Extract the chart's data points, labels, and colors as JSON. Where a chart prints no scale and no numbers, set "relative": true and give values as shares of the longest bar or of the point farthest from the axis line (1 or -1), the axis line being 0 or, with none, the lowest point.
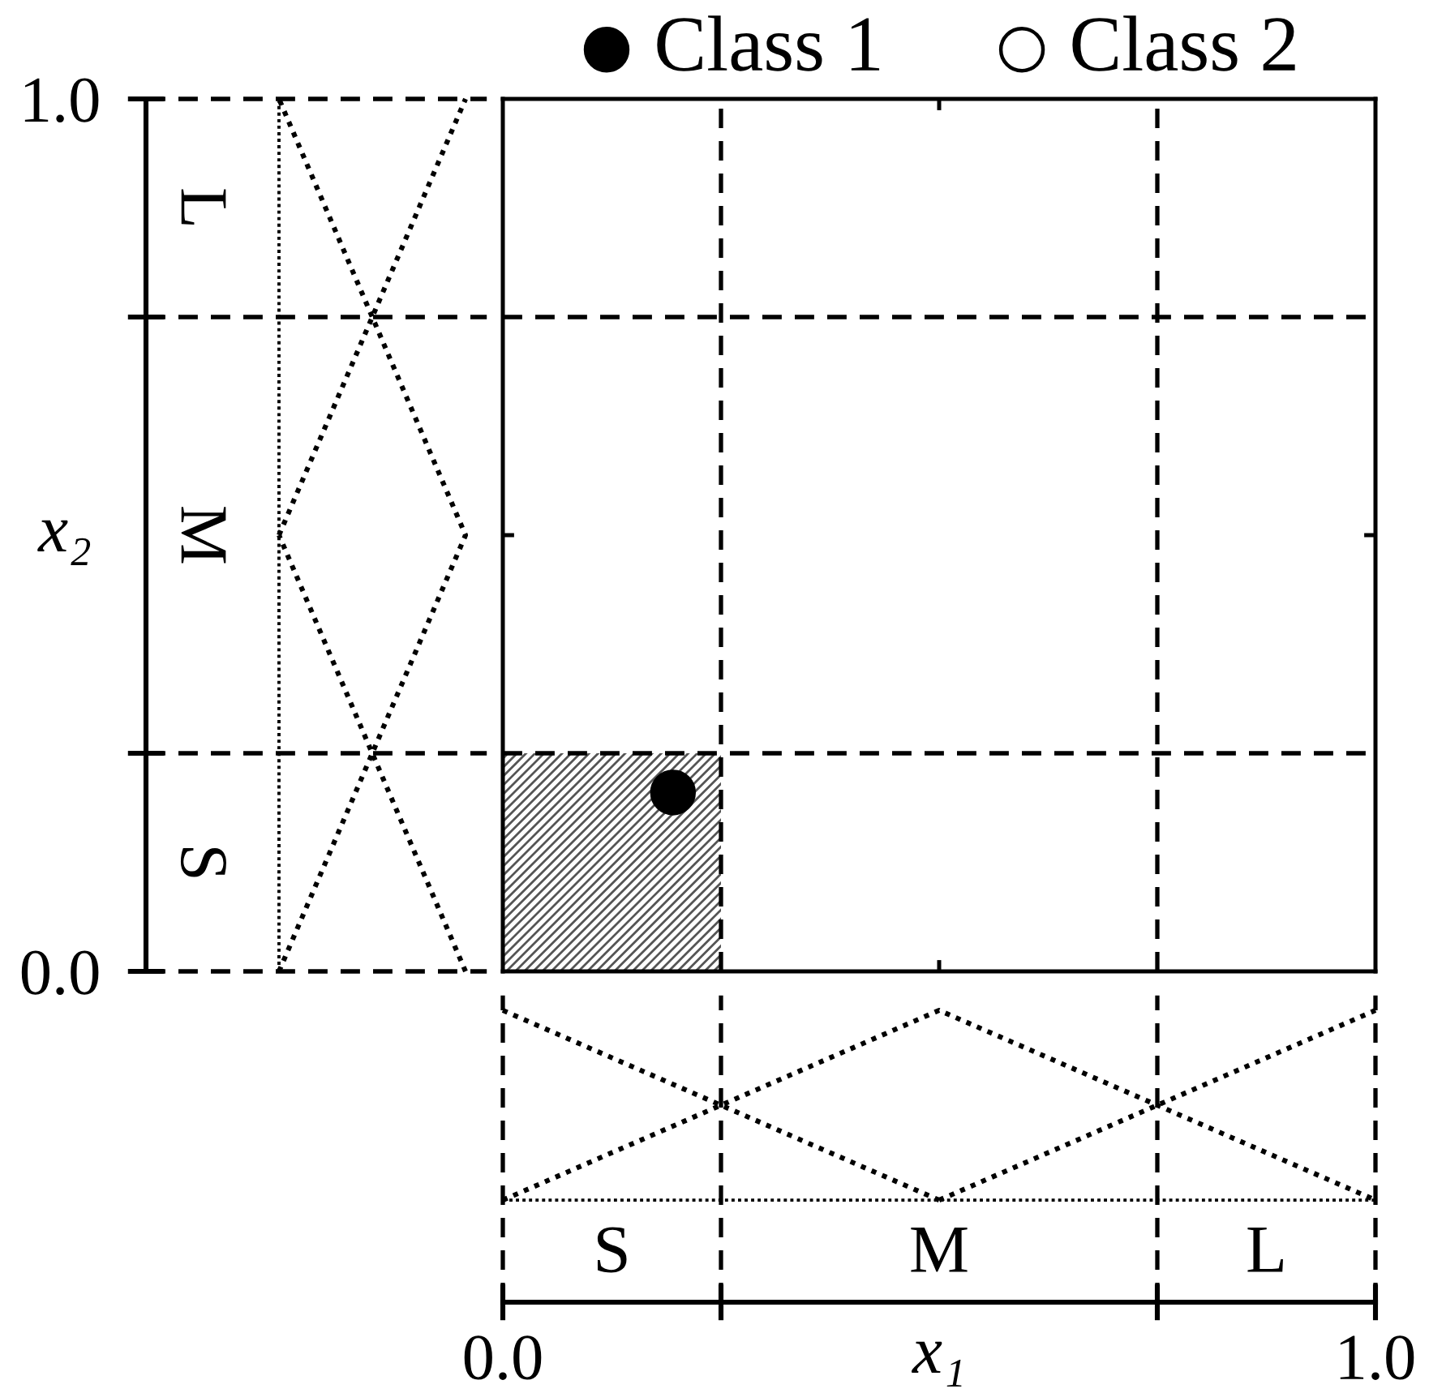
{
  "chart_data": [
    {
      "type": "line",
      "orientation": "horizontal",
      "relative": true,
      "line_style": "dotted",
      "ylim": [
        0,
        1
      ],
      "yticks": [
        {
          "value": 0,
          "label": "0.0"
        },
        {
          "value": 0.25,
          "label": null
        },
        {
          "value": 0.75,
          "label": null
        },
        {
          "value": 1,
          "label": "1.0"
        }
      ],
      "ylabel": "x₂",
      "series": [
        {
          "color": "#000000",
          "x": [
            0,
            0.5
          ],
          "values": [
            1,
            0
          ]
        },
        {
          "color": "#000000",
          "x": [
            0,
            0.5,
            1
          ],
          "values": [
            0,
            1,
            0
          ]
        },
        {
          "color": "#000000",
          "x": [
            0.5,
            1
          ],
          "values": [
            0,
            1
          ]
        }
      ],
      "ref_lines": [
        {
          "axis": "y",
          "value": 0.25,
          "color": "#000000",
          "line_style": "dashed"
        },
        {
          "axis": "y",
          "value": 0.75,
          "color": "#000000",
          "line_style": "dashed"
        },
        {
          "axis": "x",
          "value": 0,
          "color": "#000000",
          "line_style": "dotted"
        }
      ],
      "annotations": [
        "S",
        "M",
        "L"
      ]
    },
    {
      "type": "scatter",
      "xlim": [
        0,
        1
      ],
      "ylim": [
        0,
        1
      ],
      "xticks": [
        0.5
      ],
      "yticks": [
        0.5
      ],
      "tick_labels": false,
      "legend": "top",
      "series": [
        {
          "type": "area",
          "color": "#555555",
          "x": [
            0,
            0.25
          ],
          "values": [
            0.25,
            0.25
          ]
        },
        {
          "name": "Class 1",
          "color": "#000000",
          "marker": "circle",
          "x": [
            0.195
          ],
          "values": [
            0.205
          ]
        },
        {
          "name": "Class 2",
          "color": "#ffffff",
          "marker": "circle"
        }
      ],
      "ref_lines": [
        {
          "axis": "x",
          "value": 0.25,
          "color": "#000000",
          "line_style": "dashed"
        },
        {
          "axis": "x",
          "value": 0.75,
          "color": "#000000",
          "line_style": "dashed"
        },
        {
          "axis": "y",
          "value": 0.25,
          "color": "#000000",
          "line_style": "dashed"
        },
        {
          "axis": "y",
          "value": 0.75,
          "color": "#000000",
          "line_style": "dashed"
        }
      ]
    },
    {
      "type": "line",
      "relative": true,
      "line_style": "dotted",
      "xlim": [
        0,
        1
      ],
      "xticks": [
        {
          "value": 0,
          "label": "0.0"
        },
        {
          "value": 0.25,
          "label": null
        },
        {
          "value": 0.75,
          "label": null
        },
        {
          "value": 1,
          "label": "1.0"
        }
      ],
      "xlabel": "x₁",
      "series": [
        {
          "color": "#000000",
          "x": [
            0,
            0.5
          ],
          "values": [
            1,
            0
          ]
        },
        {
          "color": "#000000",
          "x": [
            0,
            0.5,
            1
          ],
          "values": [
            0,
            1,
            0
          ]
        },
        {
          "color": "#000000",
          "x": [
            0.5,
            1
          ],
          "values": [
            0,
            1
          ]
        }
      ],
      "ref_lines": [
        {
          "axis": "x",
          "value": 0.25,
          "color": "#000000",
          "line_style": "dashed"
        },
        {
          "axis": "x",
          "value": 0.75,
          "color": "#000000",
          "line_style": "dashed"
        },
        {
          "axis": "y",
          "value": 0,
          "color": "#000000",
          "line_style": "dotted"
        }
      ],
      "annotations": [
        "S",
        "M",
        "L"
      ]
    }
  ]
}
